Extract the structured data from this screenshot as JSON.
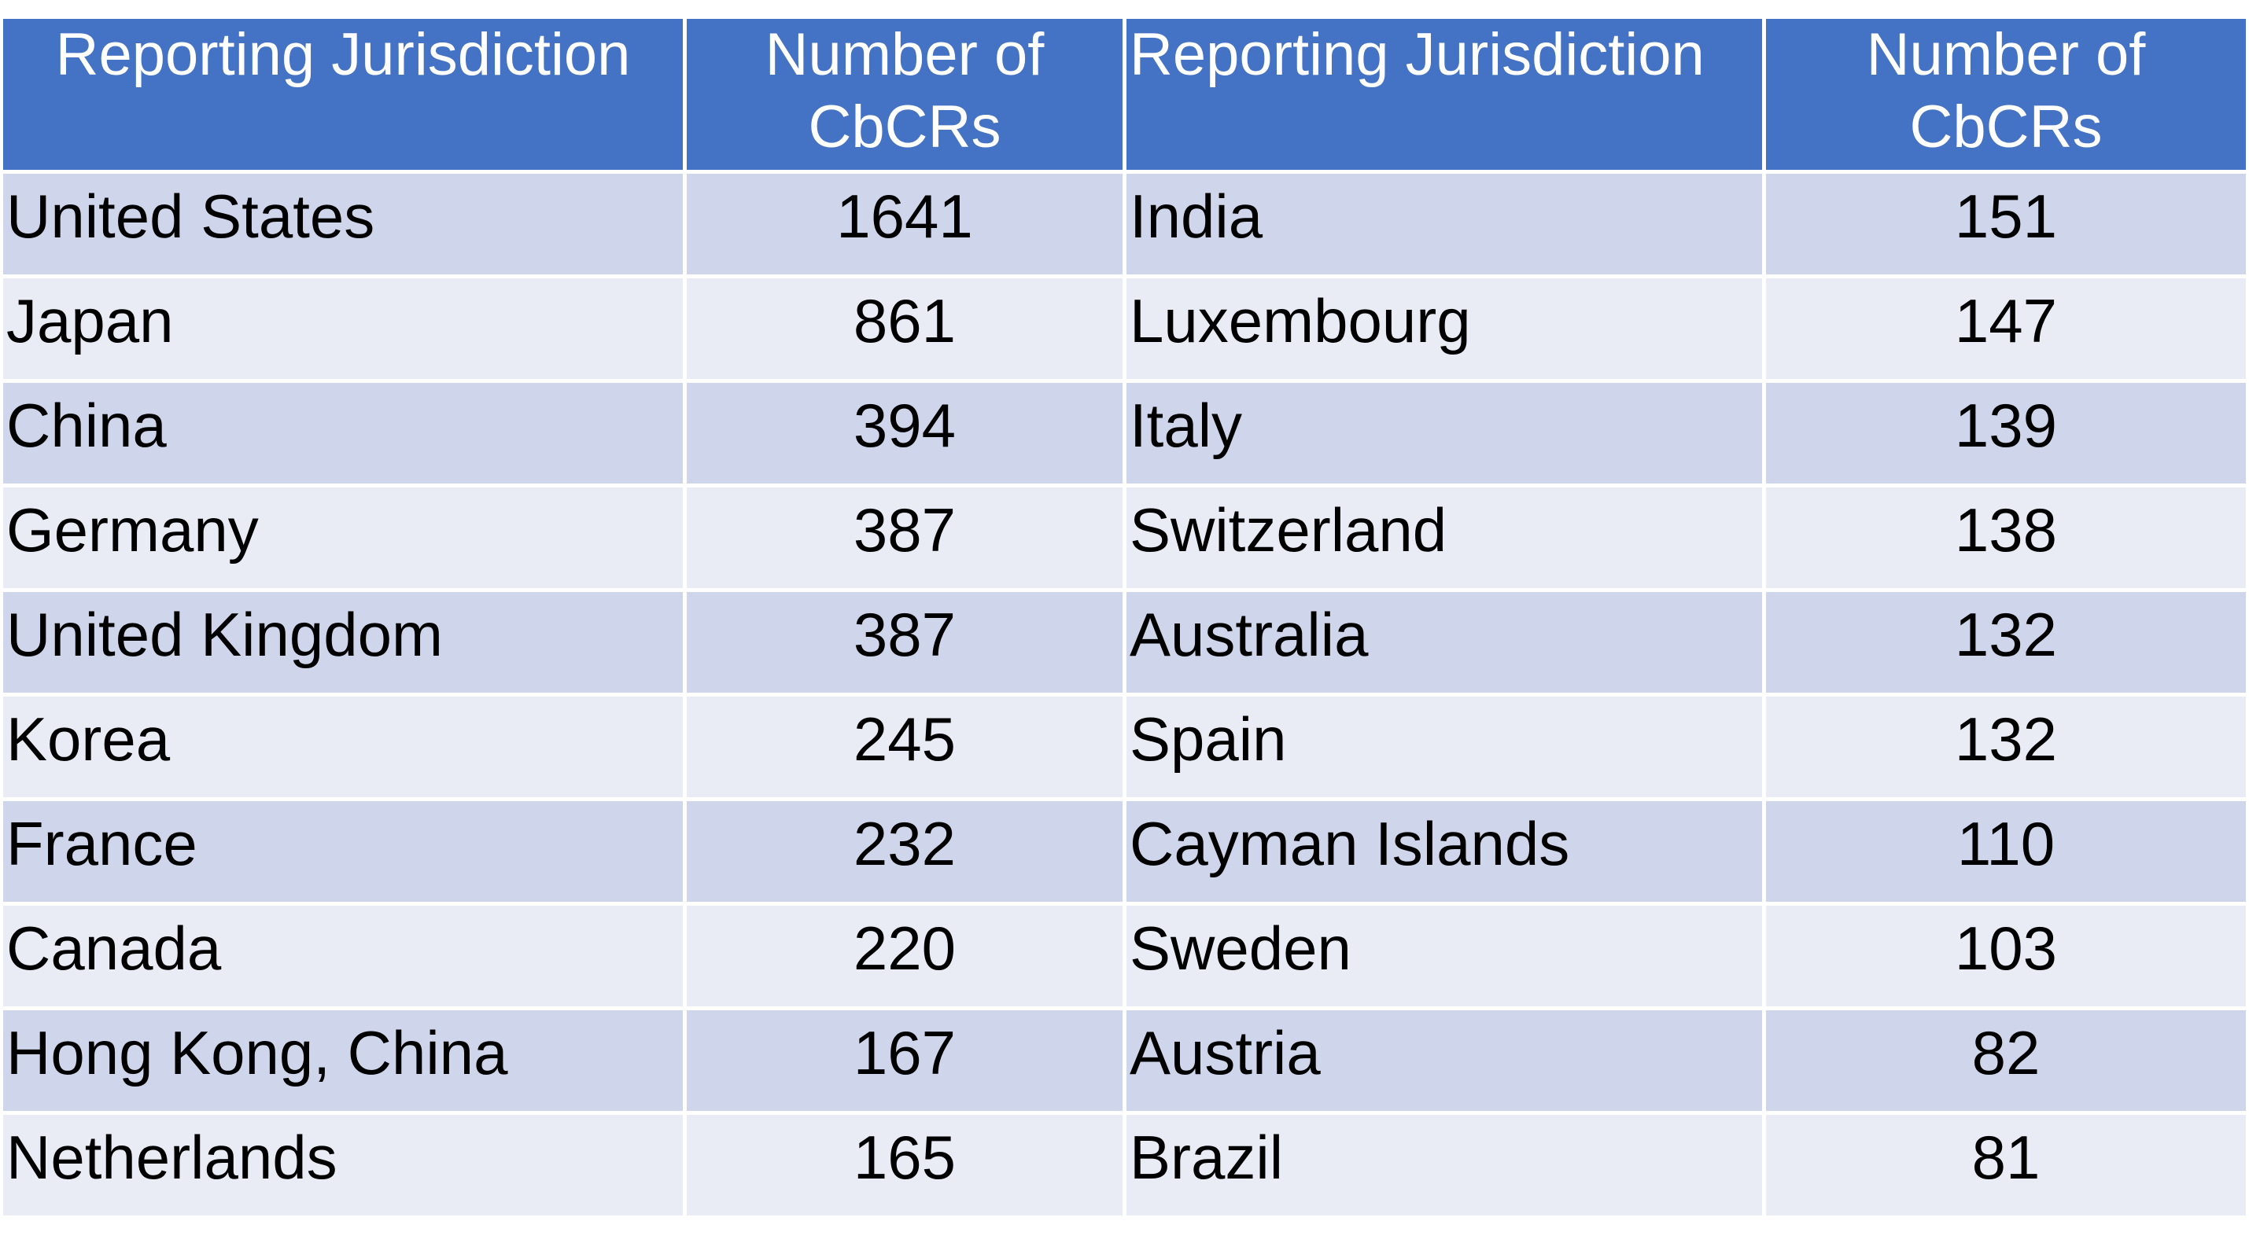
{
  "table": {
    "headers": [
      "Reporting Jurisdiction",
      "Number of CbCRs",
      "Reporting Jurisdiction",
      "Number of CbCRs"
    ],
    "header_lines": {
      "number_line1": "Number of",
      "number_line2": "CbCRs"
    },
    "rows": [
      [
        "United States",
        "1641",
        "India",
        "151"
      ],
      [
        "Japan",
        "861",
        "Luxembourg",
        "147"
      ],
      [
        "China",
        "394",
        "Italy",
        "139"
      ],
      [
        "Germany",
        "387",
        "Switzerland",
        "138"
      ],
      [
        "United Kingdom",
        "387",
        "Australia",
        "132"
      ],
      [
        "Korea",
        "245",
        "Spain",
        "132"
      ],
      [
        "France",
        "232",
        "Cayman Islands",
        "110"
      ],
      [
        "Canada",
        "220",
        "Sweden",
        "103"
      ],
      [
        "Hong Kong, China",
        "167",
        "Austria",
        "82"
      ],
      [
        "Netherlands",
        "165",
        "Brazil",
        "81"
      ]
    ]
  },
  "colors": {
    "header_bg": "#4472c4",
    "header_text": "#ffffff",
    "row_band_dark": "#cfd5ea",
    "row_band_light": "#e9ebf5",
    "cell_text": "#000000"
  }
}
